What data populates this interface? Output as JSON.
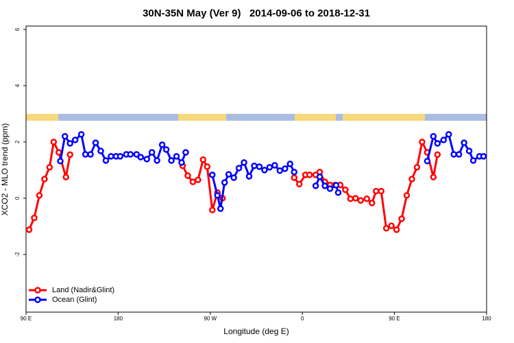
{
  "chart_data": {
    "type": "line",
    "title": "30N-35N May (Ver 9)   2014-09-06 to 2018-12-31",
    "x_label": "Longitude (deg E)",
    "y_label": "XCO2 - MLO trend (ppm)",
    "xlim": [
      90,
      540
    ],
    "xticks": [
      {
        "value": 90,
        "label": "90 E"
      },
      180,
      {
        "value": 270,
        "label": "90 W"
      },
      {
        "value": 360,
        "label": "0"
      },
      {
        "value": 450,
        "label": "90 E"
      },
      {
        "value": 540,
        "label": "180"
      }
    ],
    "ylim": [
      -4.05,
      6.12
    ],
    "yticks": [
      -2,
      0,
      2,
      4,
      6
    ],
    "legend": "bottom-left",
    "series": [
      {
        "name": "Land (Nadir&Glint)",
        "color": "#ff0000",
        "x": [
          93,
          98,
          103,
          108,
          113,
          117,
          122,
          129,
          133,
          238,
          243,
          248,
          253,
          258,
          263,
          267,
          272,
          277,
          282,
          347,
          352,
          357,
          363,
          367,
          373,
          377,
          382,
          387,
          392,
          397,
          402,
          407,
          412,
          417,
          423,
          428,
          432,
          437,
          442,
          447,
          452,
          457,
          462,
          467,
          472,
          477,
          482,
          488,
          492
        ],
        "values": [
          -1.12,
          -0.7,
          0.1,
          0.68,
          1.1,
          2.0,
          1.63,
          0.75,
          1.55,
          null,
          1.15,
          0.8,
          0.58,
          0.65,
          1.37,
          1.12,
          -0.42,
          0.2,
          0.0,
          null,
          0.73,
          0.5,
          0.83,
          0.83,
          0.83,
          0.93,
          0.58,
          0.47,
          0.47,
          0.47,
          0.3,
          -0.02,
          0.0,
          -0.08,
          -0.02,
          -0.17,
          0.25,
          0.25,
          -1.07,
          -0.98,
          -1.12,
          -0.73,
          0.1,
          0.68,
          1.1,
          2.0,
          1.63,
          0.75,
          1.55
        ]
      },
      {
        "name": "Ocean (Glint)",
        "color": "#0000ff",
        "x": [
          123.5,
          128,
          133,
          138,
          144,
          148,
          153,
          158,
          163,
          168,
          173,
          178,
          182,
          188,
          192,
          198,
          202,
          208,
          213,
          218,
          223,
          227,
          232,
          237,
          242,
          246,
          260,
          272,
          277,
          280,
          284,
          288,
          293,
          298,
          303,
          308,
          313,
          318,
          323,
          328,
          333,
          338,
          343,
          348,
          352,
          362,
          373,
          377,
          382,
          387,
          393,
          395,
          440,
          482,
          488,
          492,
          498,
          503,
          508,
          513,
          518,
          523,
          527,
          533,
          537
        ],
        "values": [
          1.32,
          2.2,
          1.95,
          2.07,
          2.27,
          1.56,
          1.56,
          1.97,
          1.68,
          1.34,
          1.49,
          1.49,
          1.49,
          1.56,
          1.56,
          1.56,
          1.46,
          1.39,
          1.63,
          1.34,
          1.9,
          1.73,
          1.34,
          1.49,
          1.27,
          1.63,
          null,
          0.83,
          0.1,
          -0.37,
          0.56,
          0.85,
          0.73,
          1.07,
          1.27,
          0.78,
          1.15,
          1.12,
          1.0,
          1.1,
          1.17,
          0.98,
          1.05,
          1.22,
          0.93,
          null,
          0.44,
          0.76,
          0.44,
          0.34,
          0.46,
          0.2,
          null,
          1.32,
          2.2,
          1.95,
          2.07,
          2.27,
          1.56,
          1.56,
          1.97,
          1.68,
          1.34,
          1.49,
          1.49
        ]
      }
    ]
  }
}
